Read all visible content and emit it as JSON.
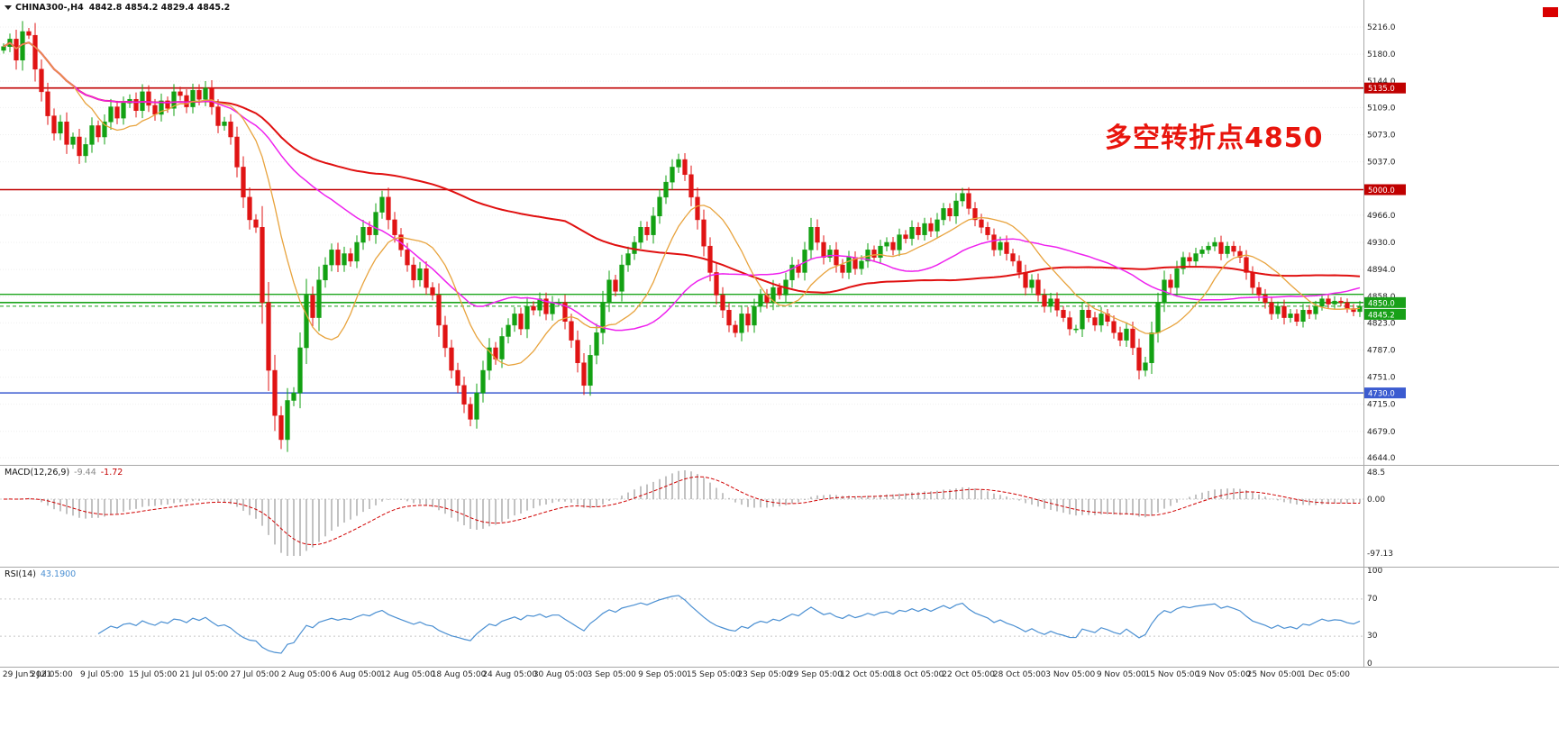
{
  "window": {
    "bg": "#ffffff"
  },
  "header": {
    "symbol": "CHINA300-,H4",
    "ohlc": "4842.8 4854.2 4829.4 4845.2"
  },
  "annotation": {
    "text": "多空转折点4850",
    "color": "#e8150d"
  },
  "corner_marker_color": "#d90000",
  "chart_data": {
    "type": "candlestick",
    "symbol": "CHINA300-",
    "timeframe": "H4",
    "ohlc_display": {
      "open": "4842.8",
      "high": "4854.2",
      "low": "4829.4",
      "close": "4845.2"
    },
    "up_color": "#13a113",
    "down_color": "#e01414",
    "price_axis": {
      "ticks": [
        "5216.0",
        "5180.0",
        "5144.0",
        "5109.0",
        "5073.0",
        "5037.0",
        "4966.0",
        "4930.0",
        "4894.0",
        "4858.0",
        "4823.0",
        "4787.0",
        "4751.0",
        "4715.0",
        "4679.0",
        "4644.0"
      ],
      "badges": [
        {
          "value": "5135.0",
          "price": 5135.0,
          "color": "#c00000",
          "offset": 0
        },
        {
          "value": "5000.0",
          "price": 5000.0,
          "color": "#c00000",
          "offset": 0
        },
        {
          "value": "4850.0",
          "price": 4850.0,
          "color": "#18a018",
          "offset": 0
        },
        {
          "value": "4845.2",
          "price": 4845.2,
          "color": "#18a018",
          "offset": 9
        },
        {
          "value": "4730.0",
          "price": 4730.0,
          "color": "#3b5bd0",
          "offset": 0
        }
      ]
    },
    "time_axis": {
      "labels": [
        "29 Jun 2021",
        "5 Jul 05:00",
        "9 Jul 05:00",
        "15 Jul 05:00",
        "21 Jul 05:00",
        "27 Jul 05:00",
        "2 Aug 05:00",
        "6 Aug 05:00",
        "12 Aug 05:00",
        "18 Aug 05:00",
        "24 Aug 05:00",
        "30 Aug 05:00",
        "3 Sep 05:00",
        "9 Sep 05:00",
        "15 Sep 05:00",
        "23 Sep 05:00",
        "29 Sep 05:00",
        "12 Oct 05:00",
        "18 Oct 05:00",
        "22 Oct 05:00",
        "28 Oct 05:00",
        "3 Nov 05:00",
        "9 Nov 05:00",
        "15 Nov 05:00",
        "19 Nov 05:00",
        "25 Nov 05:00",
        "1 Dec 05:00"
      ]
    },
    "levels": [
      {
        "price": 5135.0,
        "color": "#c00000",
        "style": "solid",
        "width": 1.6
      },
      {
        "price": 5000.0,
        "color": "#c00000",
        "style": "solid",
        "width": 1.6
      },
      {
        "price": 4861.0,
        "color": "#1ca51c",
        "style": "solid",
        "width": 1.4
      },
      {
        "price": 4850.0,
        "color": "#1ca51c",
        "style": "solid",
        "width": 1.6
      },
      {
        "price": 4845.2,
        "color": "#18a018",
        "style": "dash",
        "width": 1
      },
      {
        "price": 4730.0,
        "color": "#3b5bd0",
        "style": "solid",
        "width": 1.6
      }
    ],
    "moving_averages": [
      {
        "name": "slow-ma",
        "period": 90,
        "color": "#e01010",
        "width": 2
      },
      {
        "name": "medium-ma",
        "period": 34,
        "color": "#ee22ee",
        "width": 1.5
      },
      {
        "name": "fast-ma",
        "period": 12,
        "color": "#e8a33d",
        "width": 1.3
      }
    ],
    "closes": [
      5190,
      5200,
      5172,
      5210,
      5205,
      5160,
      5130,
      5098,
      5075,
      5090,
      5060,
      5070,
      5045,
      5060,
      5085,
      5070,
      5090,
      5110,
      5095,
      5115,
      5120,
      5105,
      5130,
      5112,
      5100,
      5118,
      5108,
      5130,
      5125,
      5110,
      5132,
      5120,
      5135,
      5110,
      5085,
      5090,
      5070,
      5030,
      4990,
      4960,
      4950,
      4850,
      4760,
      4700,
      4668,
      4720,
      4730,
      4790,
      4860,
      4830,
      4880,
      4900,
      4920,
      4900,
      4915,
      4905,
      4930,
      4950,
      4940,
      4970,
      4990,
      4960,
      4940,
      4920,
      4900,
      4880,
      4895,
      4870,
      4860,
      4820,
      4790,
      4760,
      4740,
      4715,
      4695,
      4730,
      4760,
      4790,
      4775,
      4805,
      4820,
      4835,
      4815,
      4845,
      4840,
      4855,
      4835,
      4850,
      4850,
      4825,
      4800,
      4770,
      4740,
      4780,
      4810,
      4850,
      4880,
      4865,
      4900,
      4915,
      4930,
      4950,
      4940,
      4965,
      4990,
      5010,
      5030,
      5040,
      5020,
      4990,
      4960,
      4925,
      4890,
      4860,
      4840,
      4820,
      4810,
      4835,
      4820,
      4845,
      4860,
      4850,
      4870,
      4860,
      4880,
      4900,
      4890,
      4920,
      4950,
      4930,
      4910,
      4920,
      4900,
      4890,
      4910,
      4895,
      4905,
      4920,
      4910,
      4925,
      4930,
      4920,
      4940,
      4935,
      4950,
      4940,
      4955,
      4945,
      4960,
      4975,
      4965,
      4985,
      4995,
      4975,
      4960,
      4950,
      4940,
      4920,
      4930,
      4915,
      4905,
      4890,
      4870,
      4880,
      4860,
      4845,
      4855,
      4840,
      4830,
      4815,
      4815,
      4840,
      4830,
      4820,
      4835,
      4825,
      4810,
      4800,
      4815,
      4790,
      4760,
      4770,
      4810,
      4850,
      4880,
      4870,
      4895,
      4910,
      4905,
      4915,
      4920,
      4925,
      4930,
      4915,
      4925,
      4918,
      4910,
      4890,
      4870,
      4860,
      4850,
      4835,
      4845,
      4830,
      4835,
      4825,
      4840,
      4835,
      4845,
      4855,
      4848,
      4852,
      4850,
      4842,
      4838,
      4845.2
    ],
    "macd": {
      "label": "MACD(12,26,9)",
      "value_main": "-9.44",
      "value_signal": "-1.72",
      "scale": [
        "48.5",
        "0.00",
        "-97.13"
      ],
      "histogram_color": "#a8a8a8",
      "signal_color": "#d00000"
    },
    "rsi": {
      "label": "RSI(14)",
      "value": "43.1900",
      "scale": [
        "100",
        "70",
        "30",
        "0"
      ],
      "levels": [
        70,
        30
      ],
      "line_color": "#4a8fd2"
    }
  }
}
